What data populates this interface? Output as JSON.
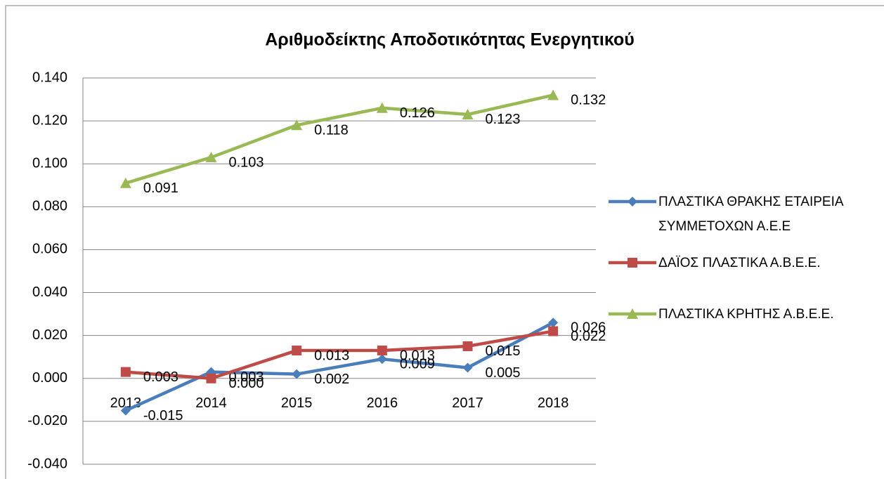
{
  "chart_data": {
    "type": "line",
    "title": "Αριθμοδείκτης Αποδοτικότητας Ενεργητικού",
    "categories": [
      "2013",
      "2014",
      "2015",
      "2016",
      "2017",
      "2018"
    ],
    "series": [
      {
        "name": "ΠΛΑΣΤΙΚΑ ΘΡΑΚΗΣ ΕΤΑΙΡΕΙΑ ΣΥΜΜΕΤΟΧΩΝ Α.Ε.Ε",
        "color": "#4a7ebb",
        "marker": "diamond",
        "values": [
          -0.015,
          0.003,
          0.002,
          0.009,
          0.005,
          0.026
        ]
      },
      {
        "name": "ΔΑΪΟΣ ΠΛΑΣΤΙΚΑ Α.Β.Ε.Ε.",
        "color": "#be4b48",
        "marker": "square",
        "values": [
          0.003,
          0,
          0.013,
          0.013,
          0.015,
          0.022
        ],
        "value_labels": [
          "0.003",
          "0.000",
          "0.013",
          "0.013",
          "0.015",
          "0.022"
        ]
      },
      {
        "name": "ΠΛΑΣΤΙΚΑ ΚΡΗΤΗΣ Α.Β.Ε.Ε.",
        "color": "#98b954",
        "marker": "triangle",
        "values": [
          0.091,
          0.103,
          0.118,
          0.126,
          0.123,
          0.132
        ]
      }
    ],
    "ylim": [
      -0.04,
      0.14
    ],
    "yticks": [
      {
        "value": -0.04,
        "label": "-0.040"
      },
      {
        "value": -0.02,
        "label": "-0.020"
      },
      {
        "value": 0,
        "label": "0.000"
      },
      {
        "value": 0.02,
        "label": "0.020"
      },
      {
        "value": 0.04,
        "label": "0.040"
      },
      {
        "value": 0.06,
        "label": "0.060"
      },
      {
        "value": 0.08,
        "label": "0.080"
      },
      {
        "value": 0.1,
        "label": "0.100"
      },
      {
        "value": 0.12,
        "label": "0.120"
      },
      {
        "value": 0.14,
        "label": "0.140"
      }
    ],
    "grid": true,
    "legend": "right"
  }
}
